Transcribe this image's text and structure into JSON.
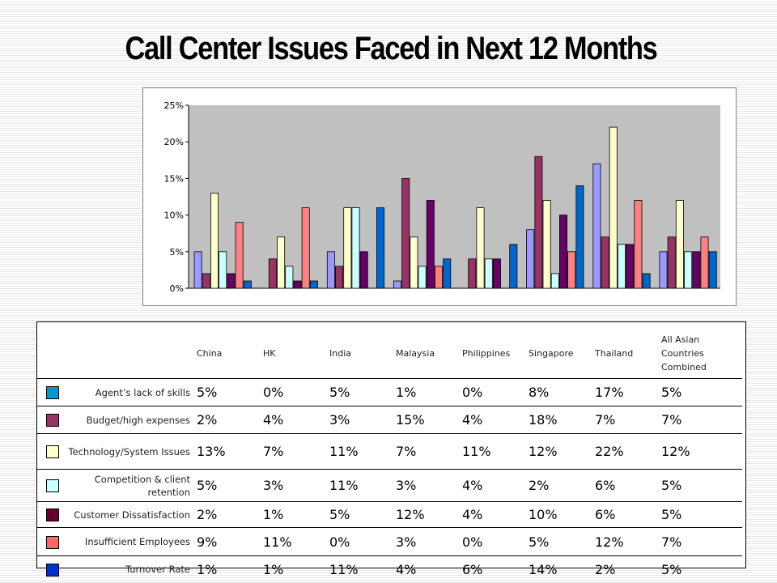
{
  "title": "Call Center Issues Faced in Next 12 Months",
  "colors": {
    "series": [
      "#9999ff",
      "#993366",
      "#ffffcc",
      "#ccffff",
      "#660066",
      "#ff8080",
      "#0066cc"
    ],
    "swatches": [
      "#0099cc",
      "#993366",
      "#ffffcc",
      "#ccffff",
      "#660033",
      "#ff6666",
      "#0033cc"
    ]
  },
  "chart_data": {
    "type": "bar",
    "categories": [
      "China",
      "HK",
      "India",
      "Malaysia",
      "Philippines",
      "Singapore",
      "Thailand",
      "All Asian Countries Combined"
    ],
    "series": [
      {
        "name": "Agent’s lack of skills",
        "values": [
          5,
          0,
          5,
          1,
          0,
          8,
          17,
          5
        ]
      },
      {
        "name": "Budget/high  expenses",
        "values": [
          2,
          4,
          3,
          15,
          4,
          18,
          7,
          7
        ]
      },
      {
        "name": "Technology/System Issues",
        "values": [
          13,
          7,
          11,
          7,
          11,
          12,
          22,
          12
        ]
      },
      {
        "name": "Competition  & client retention",
        "values": [
          5,
          3,
          11,
          3,
          4,
          2,
          6,
          5
        ]
      },
      {
        "name": "Customer Dissatisfaction",
        "values": [
          2,
          1,
          5,
          12,
          4,
          10,
          6,
          5
        ]
      },
      {
        "name": "Insufficient Employees",
        "values": [
          9,
          11,
          0,
          3,
          0,
          5,
          12,
          7
        ]
      },
      {
        "name": "Turnover Rate",
        "values": [
          1,
          1,
          11,
          4,
          6,
          14,
          2,
          5
        ]
      }
    ],
    "ylim": [
      0,
      25
    ],
    "yticks": [
      "0%",
      "5%",
      "10%",
      "15%",
      "20%",
      "25%"
    ],
    "grid": false,
    "legend": "table below chart"
  },
  "table": {
    "headers": [
      "China",
      "HK",
      "India",
      "Malaysia",
      "Philippines",
      "Singapore",
      "Thailand",
      "All Asian Countries Combined"
    ],
    "rows": [
      {
        "label": "Agent’s lack of skills",
        "cells": [
          "5%",
          "0%",
          "5%",
          "1%",
          "0%",
          "8%",
          "17%",
          "5%"
        ]
      },
      {
        "label": "Budget/high  expenses",
        "cells": [
          "2%",
          "4%",
          "3%",
          "15%",
          "4%",
          "18%",
          "7%",
          "7%"
        ]
      },
      {
        "label": "Technology/System Issues",
        "cells": [
          "13%",
          "7%",
          "11%",
          "7%",
          "11%",
          "12%",
          "22%",
          "12%"
        ]
      },
      {
        "label": "Competition  & client retention",
        "cells": [
          "5%",
          "3%",
          "11%",
          "3%",
          "4%",
          "2%",
          "6%",
          "5%"
        ]
      },
      {
        "label": "Customer Dissatisfaction",
        "cells": [
          "2%",
          "1%",
          "5%",
          "12%",
          "4%",
          "10%",
          "6%",
          "5%"
        ]
      },
      {
        "label": "Insufficient Employees",
        "cells": [
          "9%",
          "11%",
          "0%",
          "3%",
          "0%",
          "5%",
          "12%",
          "7%"
        ]
      },
      {
        "label": "Turnover Rate",
        "cells": [
          "1%",
          "1%",
          "11%",
          "4%",
          "6%",
          "14%",
          "2%",
          "5%"
        ]
      }
    ]
  }
}
